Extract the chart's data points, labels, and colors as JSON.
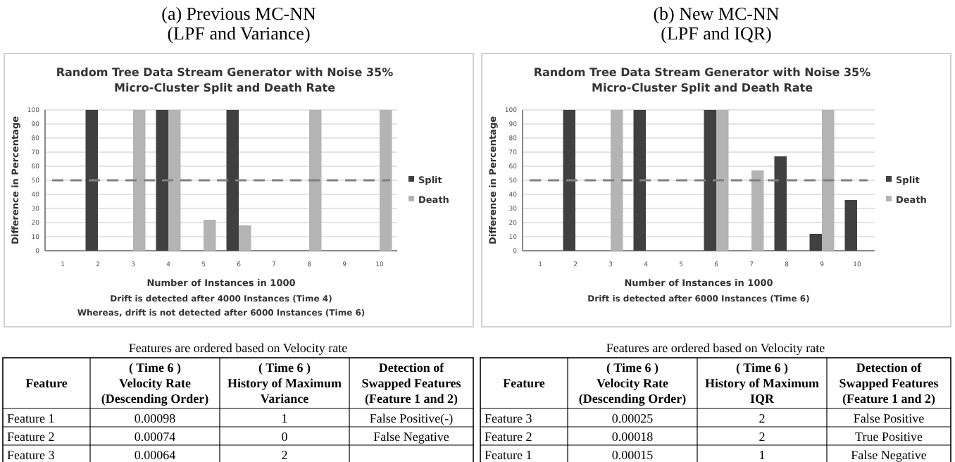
{
  "chart_data": [
    {
      "type": "bar",
      "subtitle": "(a) Previous MC-NN\n(LPF and Variance)",
      "title": "Random Tree Data Stream Generator with Noise 35%\nMicro-Cluster Split and Death Rate",
      "xlabel": "Number of Instances in 1000",
      "ylabel": "Difference in Percentage",
      "categories": [
        "1",
        "2",
        "3",
        "4",
        "5",
        "6",
        "7",
        "8",
        "9",
        "10"
      ],
      "series": [
        {
          "name": "Split",
          "color": "#404040",
          "values": [
            0,
            100,
            0,
            100,
            0,
            100,
            0,
            0,
            0,
            0
          ]
        },
        {
          "name": "Death",
          "color": "#b4b4b4",
          "values": [
            0,
            0,
            100,
            100,
            22,
            18,
            0,
            100,
            0,
            100
          ]
        }
      ],
      "ylim": [
        0,
        100
      ],
      "yticks": [
        0,
        10,
        20,
        30,
        40,
        50,
        60,
        70,
        80,
        90,
        100
      ],
      "grid": "y",
      "legend": "right",
      "ref_lines": [
        {
          "axis": "y",
          "value": 50,
          "label": null,
          "color": "#808080",
          "line_style": "dashed"
        }
      ],
      "annotations": [
        "Drift is detected after 4000 Instances (Time 4)",
        "Whereas, drift is not detected after 6000 Instances (Time 6)"
      ]
    },
    {
      "type": "bar",
      "subtitle": "(b) New MC-NN\n(LPF and IQR)",
      "title": "Random Tree Data Stream Generator with Noise 35%\nMicro-Cluster Split and Death Rate",
      "xlabel": "Number of Instances in 1000",
      "ylabel": "Difference in Percentage",
      "categories": [
        "1",
        "2",
        "3",
        "4",
        "5",
        "6",
        "7",
        "8",
        "9",
        "10"
      ],
      "series": [
        {
          "name": "Split",
          "color": "#404040",
          "values": [
            0,
            100,
            0,
            100,
            0,
            100,
            0,
            67,
            12,
            36
          ]
        },
        {
          "name": "Death",
          "color": "#b4b4b4",
          "values": [
            0,
            0,
            100,
            0,
            0,
            100,
            57,
            0,
            100,
            0
          ]
        }
      ],
      "ylim": [
        0,
        100
      ],
      "yticks": [
        0,
        10,
        20,
        30,
        40,
        50,
        60,
        70,
        80,
        90,
        100
      ],
      "grid": "y",
      "legend": "right",
      "ref_lines": [
        {
          "axis": "y",
          "value": 50,
          "label": null,
          "color": "#808080",
          "line_style": "dashed"
        }
      ],
      "annotations": [
        "Drift is detected after 6000 Instances (Time 6)"
      ]
    },
    {
      "type": "other",
      "title": "Features are ordered based on Velocity rate",
      "categories": [
        "Feature",
        "( Time 6 )\nVelocity Rate\n(Descending Order)",
        "( Time 6 )\nHistory of Maximum\nVariance",
        "Detection of\nSwapped Features\n(Feature 1 and 2)"
      ],
      "cell_labels": [
        [
          "Feature 1",
          "0.00098",
          "1",
          "False Positive(-)"
        ],
        [
          "Feature 2",
          "0.00074",
          "0",
          "False Negative"
        ],
        [
          "Feature 3",
          "0.00064",
          "2",
          null
        ]
      ]
    },
    {
      "type": "other",
      "title": "Features are ordered based on Velocity rate",
      "categories": [
        "Feature",
        "( Time 6 )\nVelocity Rate\n(Descending Order)",
        "( Time 6 )\nHistory of Maximum\nIQR",
        "Detection of\nSwapped Features\n(Feature 1 and 2)"
      ],
      "cell_labels": [
        [
          "Feature 3",
          "0.00025",
          "2",
          "False Positive"
        ],
        [
          "Feature 2",
          "0.00018",
          "2",
          "True Positive"
        ],
        [
          "Feature 1",
          "0.00015",
          "1",
          "False Negative"
        ]
      ]
    }
  ]
}
